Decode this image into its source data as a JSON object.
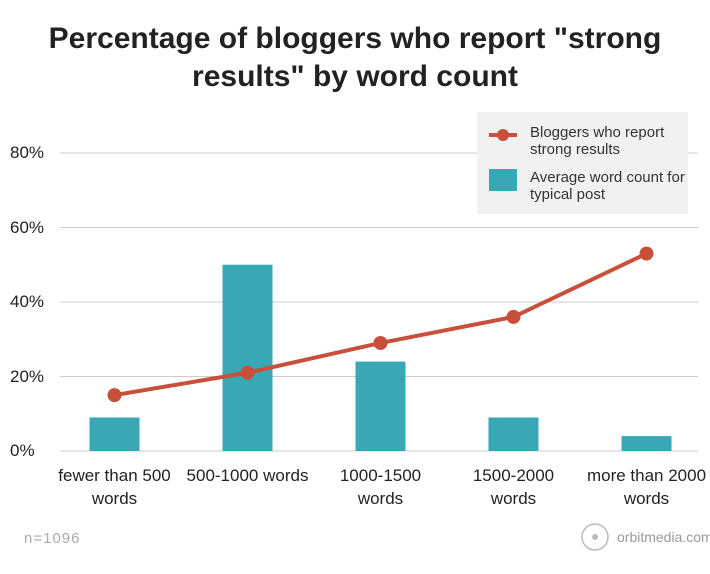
{
  "chart_data": {
    "type": "combo",
    "title": "Percentage of bloggers who report \"strong results\" by word count",
    "categories": [
      "fewer than 500 words",
      "500-1000 words",
      "1000-1500 words",
      "1500-2000 words",
      "more than 2000 words"
    ],
    "series": [
      {
        "name": "Bloggers who report strong results",
        "type": "line",
        "color": "#c8503a",
        "values": [
          15,
          21,
          29,
          36,
          53
        ]
      },
      {
        "name": "Average word count for typical post",
        "type": "bar",
        "color": "#3aa7b5",
        "values": [
          9,
          50,
          24,
          9,
          4
        ]
      }
    ],
    "ylim": [
      0,
      80
    ],
    "yticks": [
      {
        "value": 0,
        "label": "0%"
      },
      {
        "value": 20,
        "label": "20%"
      },
      {
        "value": 40,
        "label": "40%"
      },
      {
        "value": 60,
        "label": "60%"
      },
      {
        "value": 80,
        "label": "80%"
      }
    ],
    "grid": true,
    "legend": "top-right",
    "note": "n=1096",
    "source": "orbitmedia.com"
  }
}
